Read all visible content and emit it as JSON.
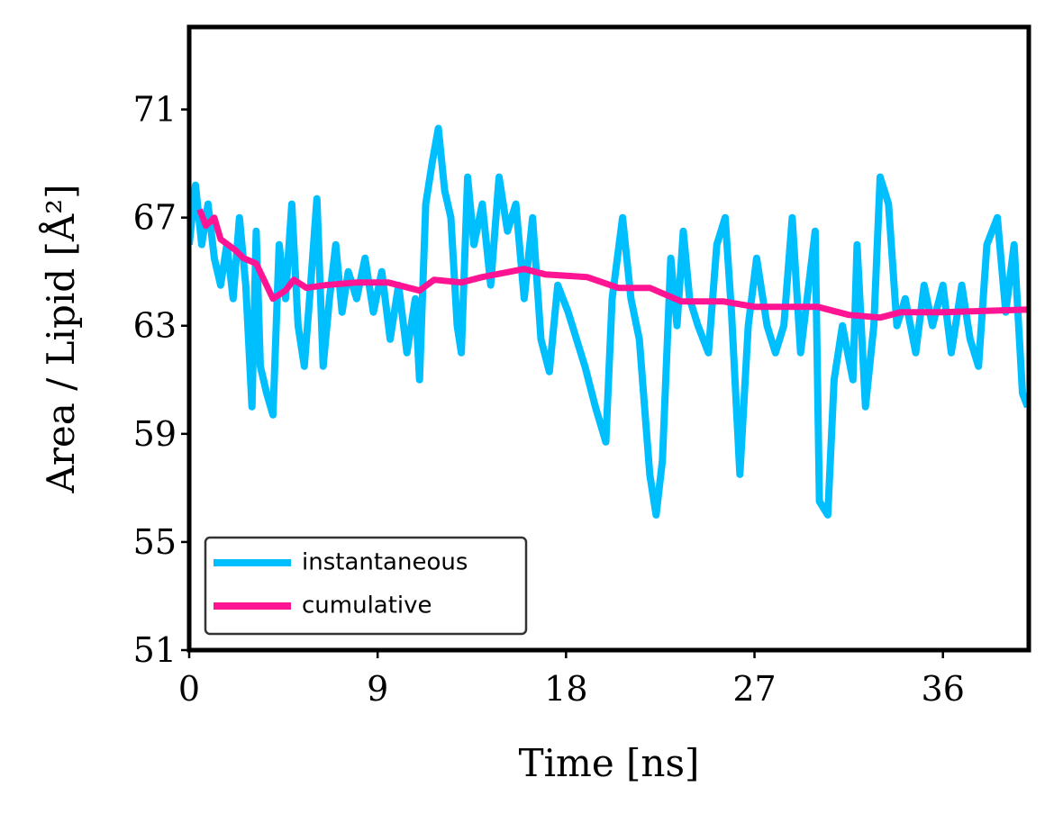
{
  "chart_data": {
    "type": "line",
    "xlabel": "Time [ns]",
    "ylabel": "Area / Lipid [Å²]",
    "xlim": [
      0,
      40.1
    ],
    "ylim": [
      51,
      74.05
    ],
    "xticks": [
      0,
      9,
      18,
      27,
      36
    ],
    "yticks": [
      51,
      55,
      59,
      63,
      67,
      71
    ],
    "legend": "lower left",
    "series": [
      {
        "name": "instantaneous",
        "color": "#00bfff",
        "x": [
          0,
          0.3,
          0.6,
          0.9,
          1.2,
          1.5,
          1.8,
          2.1,
          2.4,
          2.7,
          3.0,
          3.2,
          3.4,
          3.7,
          4.0,
          4.3,
          4.6,
          4.9,
          5.2,
          5.5,
          5.8,
          6.1,
          6.4,
          6.7,
          7.0,
          7.3,
          7.6,
          8.0,
          8.4,
          8.8,
          9.2,
          9.6,
          10.0,
          10.4,
          10.8,
          11.0,
          11.3,
          11.6,
          11.9,
          12.2,
          12.5,
          12.8,
          13.0,
          13.3,
          13.6,
          14.0,
          14.4,
          14.8,
          15.2,
          15.6,
          16.0,
          16.4,
          16.8,
          17.2,
          17.6,
          18.1,
          18.5,
          18.9,
          19.4,
          19.9,
          20.2,
          20.7,
          21.1,
          21.5,
          22.0,
          22.3,
          22.6,
          23.0,
          23.3,
          23.6,
          23.9,
          24.3,
          24.8,
          25.2,
          25.6,
          25.9,
          26.3,
          26.7,
          27.1,
          27.6,
          28.0,
          28.4,
          28.8,
          29.2,
          29.9,
          30.1,
          30.5,
          30.8,
          31.2,
          31.7,
          31.9,
          32.3,
          32.7,
          33.0,
          33.4,
          33.8,
          34.2,
          34.7,
          35.1,
          35.5,
          36.0,
          36.4,
          36.9,
          37.3,
          37.7,
          38.1,
          38.6,
          39.0,
          39.4,
          39.8,
          40.05
        ],
        "values": [
          66,
          68.2,
          66,
          67.5,
          65.5,
          64.5,
          66,
          64,
          67,
          64.5,
          60,
          66.5,
          61.5,
          60.5,
          59.7,
          66,
          64,
          67.5,
          63,
          61.5,
          64.5,
          67.7,
          61.5,
          64,
          66,
          63.5,
          65,
          64,
          65.5,
          63.5,
          65,
          62.5,
          64.5,
          62,
          64,
          61,
          67.5,
          69,
          70.3,
          68,
          67,
          63,
          62,
          68.5,
          66,
          67.5,
          64.5,
          68.5,
          66.5,
          67.5,
          64,
          67,
          62.5,
          61.3,
          64.5,
          63.5,
          62.5,
          61.5,
          60,
          58.7,
          64,
          67,
          64,
          62.5,
          57.5,
          56,
          58,
          65.5,
          63,
          66.5,
          64,
          63,
          62,
          66,
          67,
          63.5,
          57.5,
          63,
          65.5,
          63,
          62,
          63,
          67,
          62,
          66.5,
          56.5,
          56,
          61,
          63,
          61,
          66,
          60,
          63,
          68.5,
          67.5,
          63,
          64,
          62,
          64.5,
          63,
          64.5,
          62,
          64.5,
          62.5,
          61.5,
          66,
          67,
          63.5,
          66,
          60.5,
          60
        ]
      },
      {
        "name": "cumulative",
        "color": "#ff1493",
        "x": [
          0.5,
          0.8,
          1.2,
          1.5,
          2.2,
          2.6,
          3.2,
          4.0,
          4.6,
          5.0,
          5.6,
          6.5,
          8,
          9.5,
          11,
          11.7,
          13,
          14,
          16,
          17,
          19,
          20.5,
          22,
          23.5,
          25.5,
          27,
          30,
          31.5,
          33,
          34,
          36,
          40.1
        ],
        "values": [
          67.3,
          66.7,
          67,
          66.2,
          65.8,
          65.5,
          65.3,
          64,
          64.3,
          64.7,
          64.4,
          64.5,
          64.6,
          64.6,
          64.3,
          64.7,
          64.6,
          64.8,
          65.1,
          64.9,
          64.8,
          64.4,
          64.4,
          63.9,
          63.9,
          63.7,
          63.7,
          63.4,
          63.3,
          63.5,
          63.5,
          63.6
        ]
      }
    ]
  }
}
